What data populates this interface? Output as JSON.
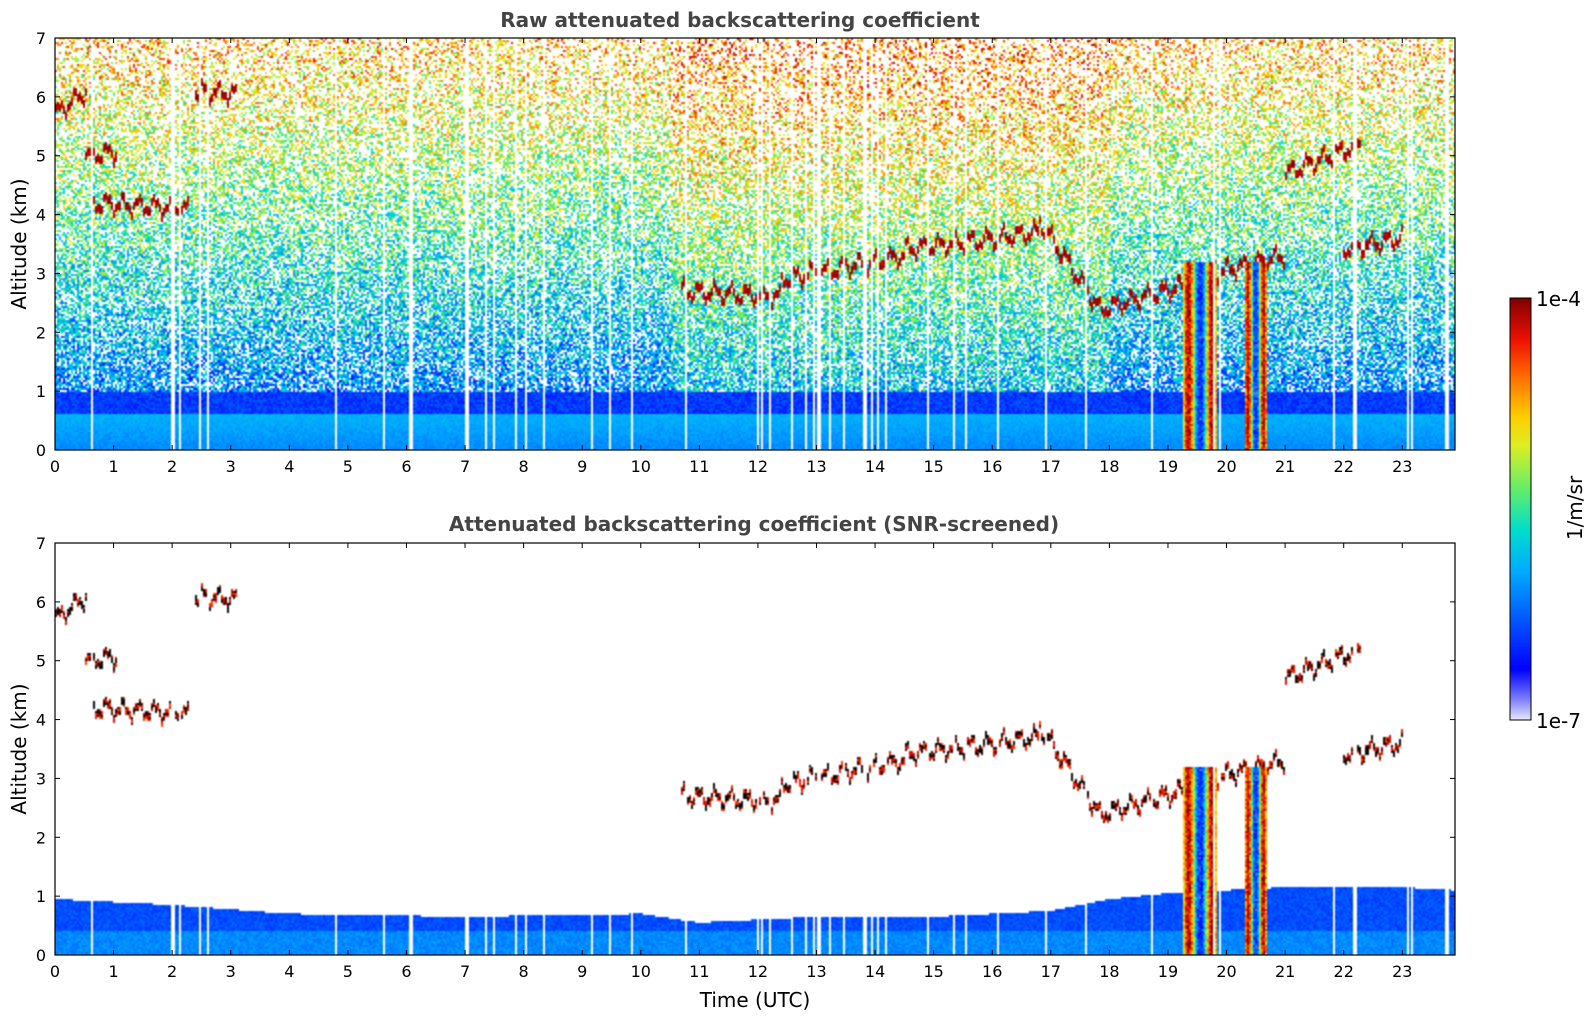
{
  "chart_data": [
    {
      "type": "heatmap",
      "title": "Raw attenuated backscattering coefficient",
      "xlabel": "",
      "ylabel": "Altitude (km)",
      "xlim": [
        0,
        23.9
      ],
      "ylim": [
        0,
        7
      ],
      "xticks": [
        "0",
        "1",
        "2",
        "3",
        "4",
        "5",
        "6",
        "7",
        "8",
        "9",
        "10",
        "11",
        "12",
        "13",
        "14",
        "15",
        "16",
        "17",
        "18",
        "19",
        "20",
        "21",
        "22",
        "23"
      ],
      "yticks": [
        "0",
        "1",
        "2",
        "3",
        "4",
        "5",
        "6",
        "7"
      ],
      "screened": false,
      "cloud_layers": [
        {
          "t_start": 0.0,
          "t_end": 0.55,
          "alt_start": 5.7,
          "alt_end": 6.1
        },
        {
          "t_start": 0.5,
          "t_end": 1.05,
          "alt_start": 5.0,
          "alt_end": 5.05
        },
        {
          "t_start": 0.6,
          "t_end": 2.3,
          "alt_start": 4.2,
          "alt_end": 4.1
        },
        {
          "t_start": 2.4,
          "t_end": 3.1,
          "alt_start": 6.1,
          "alt_end": 6.05
        },
        {
          "t_start": 10.7,
          "t_end": 12.4,
          "alt_start": 2.7,
          "alt_end": 2.6
        },
        {
          "t_start": 12.4,
          "t_end": 14.5,
          "alt_start": 2.9,
          "alt_end": 3.3
        },
        {
          "t_start": 14.5,
          "t_end": 16.8,
          "alt_start": 3.4,
          "alt_end": 3.7
        },
        {
          "t_start": 16.8,
          "t_end": 17.9,
          "alt_start": 3.9,
          "alt_end": 2.3
        },
        {
          "t_start": 17.9,
          "t_end": 19.3,
          "alt_start": 2.4,
          "alt_end": 2.8
        },
        {
          "t_start": 19.3,
          "t_end": 21.0,
          "alt_start": 2.9,
          "alt_end": 3.3
        },
        {
          "t_start": 21.0,
          "t_end": 22.3,
          "alt_start": 4.7,
          "alt_end": 5.2
        },
        {
          "t_start": 22.0,
          "t_end": 23.0,
          "alt_start": 3.4,
          "alt_end": 3.6
        }
      ],
      "precipitation_shafts": [
        {
          "t_start": 19.25,
          "t_end": 19.85,
          "top_alt": 3.2
        },
        {
          "t_start": 20.3,
          "t_end": 20.7,
          "top_alt": 3.2
        }
      ]
    },
    {
      "type": "heatmap",
      "title": "Attenuated backscattering coefficient (SNR-screened)",
      "xlabel": "Time (UTC)",
      "ylabel": "Altitude (km)",
      "xlim": [
        0,
        23.9
      ],
      "ylim": [
        0,
        7
      ],
      "xticks": [
        "0",
        "1",
        "2",
        "3",
        "4",
        "5",
        "6",
        "7",
        "8",
        "9",
        "10",
        "11",
        "12",
        "13",
        "14",
        "15",
        "16",
        "17",
        "18",
        "19",
        "20",
        "21",
        "22",
        "23"
      ],
      "yticks": [
        "0",
        "1",
        "2",
        "3",
        "4",
        "5",
        "6",
        "7"
      ],
      "screened": true,
      "boundary_layer_top": [
        {
          "t": 0,
          "alt": 0.95
        },
        {
          "t": 2,
          "alt": 0.85
        },
        {
          "t": 4,
          "alt": 0.7
        },
        {
          "t": 7,
          "alt": 0.65
        },
        {
          "t": 10,
          "alt": 0.7
        },
        {
          "t": 11,
          "alt": 0.55
        },
        {
          "t": 13,
          "alt": 0.65
        },
        {
          "t": 15,
          "alt": 0.65
        },
        {
          "t": 17,
          "alt": 0.75
        },
        {
          "t": 18,
          "alt": 0.95
        },
        {
          "t": 19,
          "alt": 1.05
        },
        {
          "t": 21,
          "alt": 1.15
        },
        {
          "t": 23,
          "alt": 1.15
        },
        {
          "t": 23.9,
          "alt": 1.1
        }
      ]
    }
  ],
  "colorbar": {
    "label": "1/m/sr",
    "max_label": "1e-4",
    "min_label": "1e-7",
    "colormap": "jet"
  }
}
